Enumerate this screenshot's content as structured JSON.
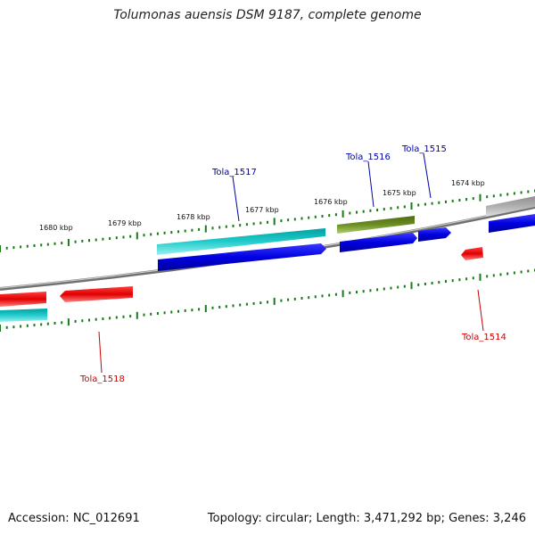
{
  "title": "Tolumonas auensis DSM 9187, complete genome",
  "footer": {
    "accession": "Accession: NC_012691",
    "topology": "Topology: circular; Length: 3,471,292 bp; Genes: 3,246"
  },
  "ticks": [
    {
      "label": "1680 kbp"
    },
    {
      "label": "1679 kbp"
    },
    {
      "label": "1678 kbp"
    },
    {
      "label": "1677 kbp"
    },
    {
      "label": "1676 kbp"
    },
    {
      "label": "1675 kbp"
    },
    {
      "label": "1674 kbp"
    }
  ],
  "genes": [
    {
      "name": "Tola_1518",
      "strand": "minus",
      "color": "#cc0000"
    },
    {
      "name": "Tola_1517",
      "strand": "plus",
      "color": "#0000aa"
    },
    {
      "name": "Tola_1516",
      "strand": "plus",
      "color": "#0000aa"
    },
    {
      "name": "Tola_1515",
      "strand": "plus",
      "color": "#0000aa"
    },
    {
      "name": "Tola_1514",
      "strand": "minus",
      "color": "#cc0000"
    }
  ],
  "colors": {
    "backbone": "#808080",
    "forward_cds": "#0000e0",
    "reverse_cds": "#e00000",
    "cyan_feature": "#22cccc",
    "olive_feature": "#6b8e23",
    "grey_feature": "#b0b0b0",
    "tick": "#1a7a1a"
  }
}
